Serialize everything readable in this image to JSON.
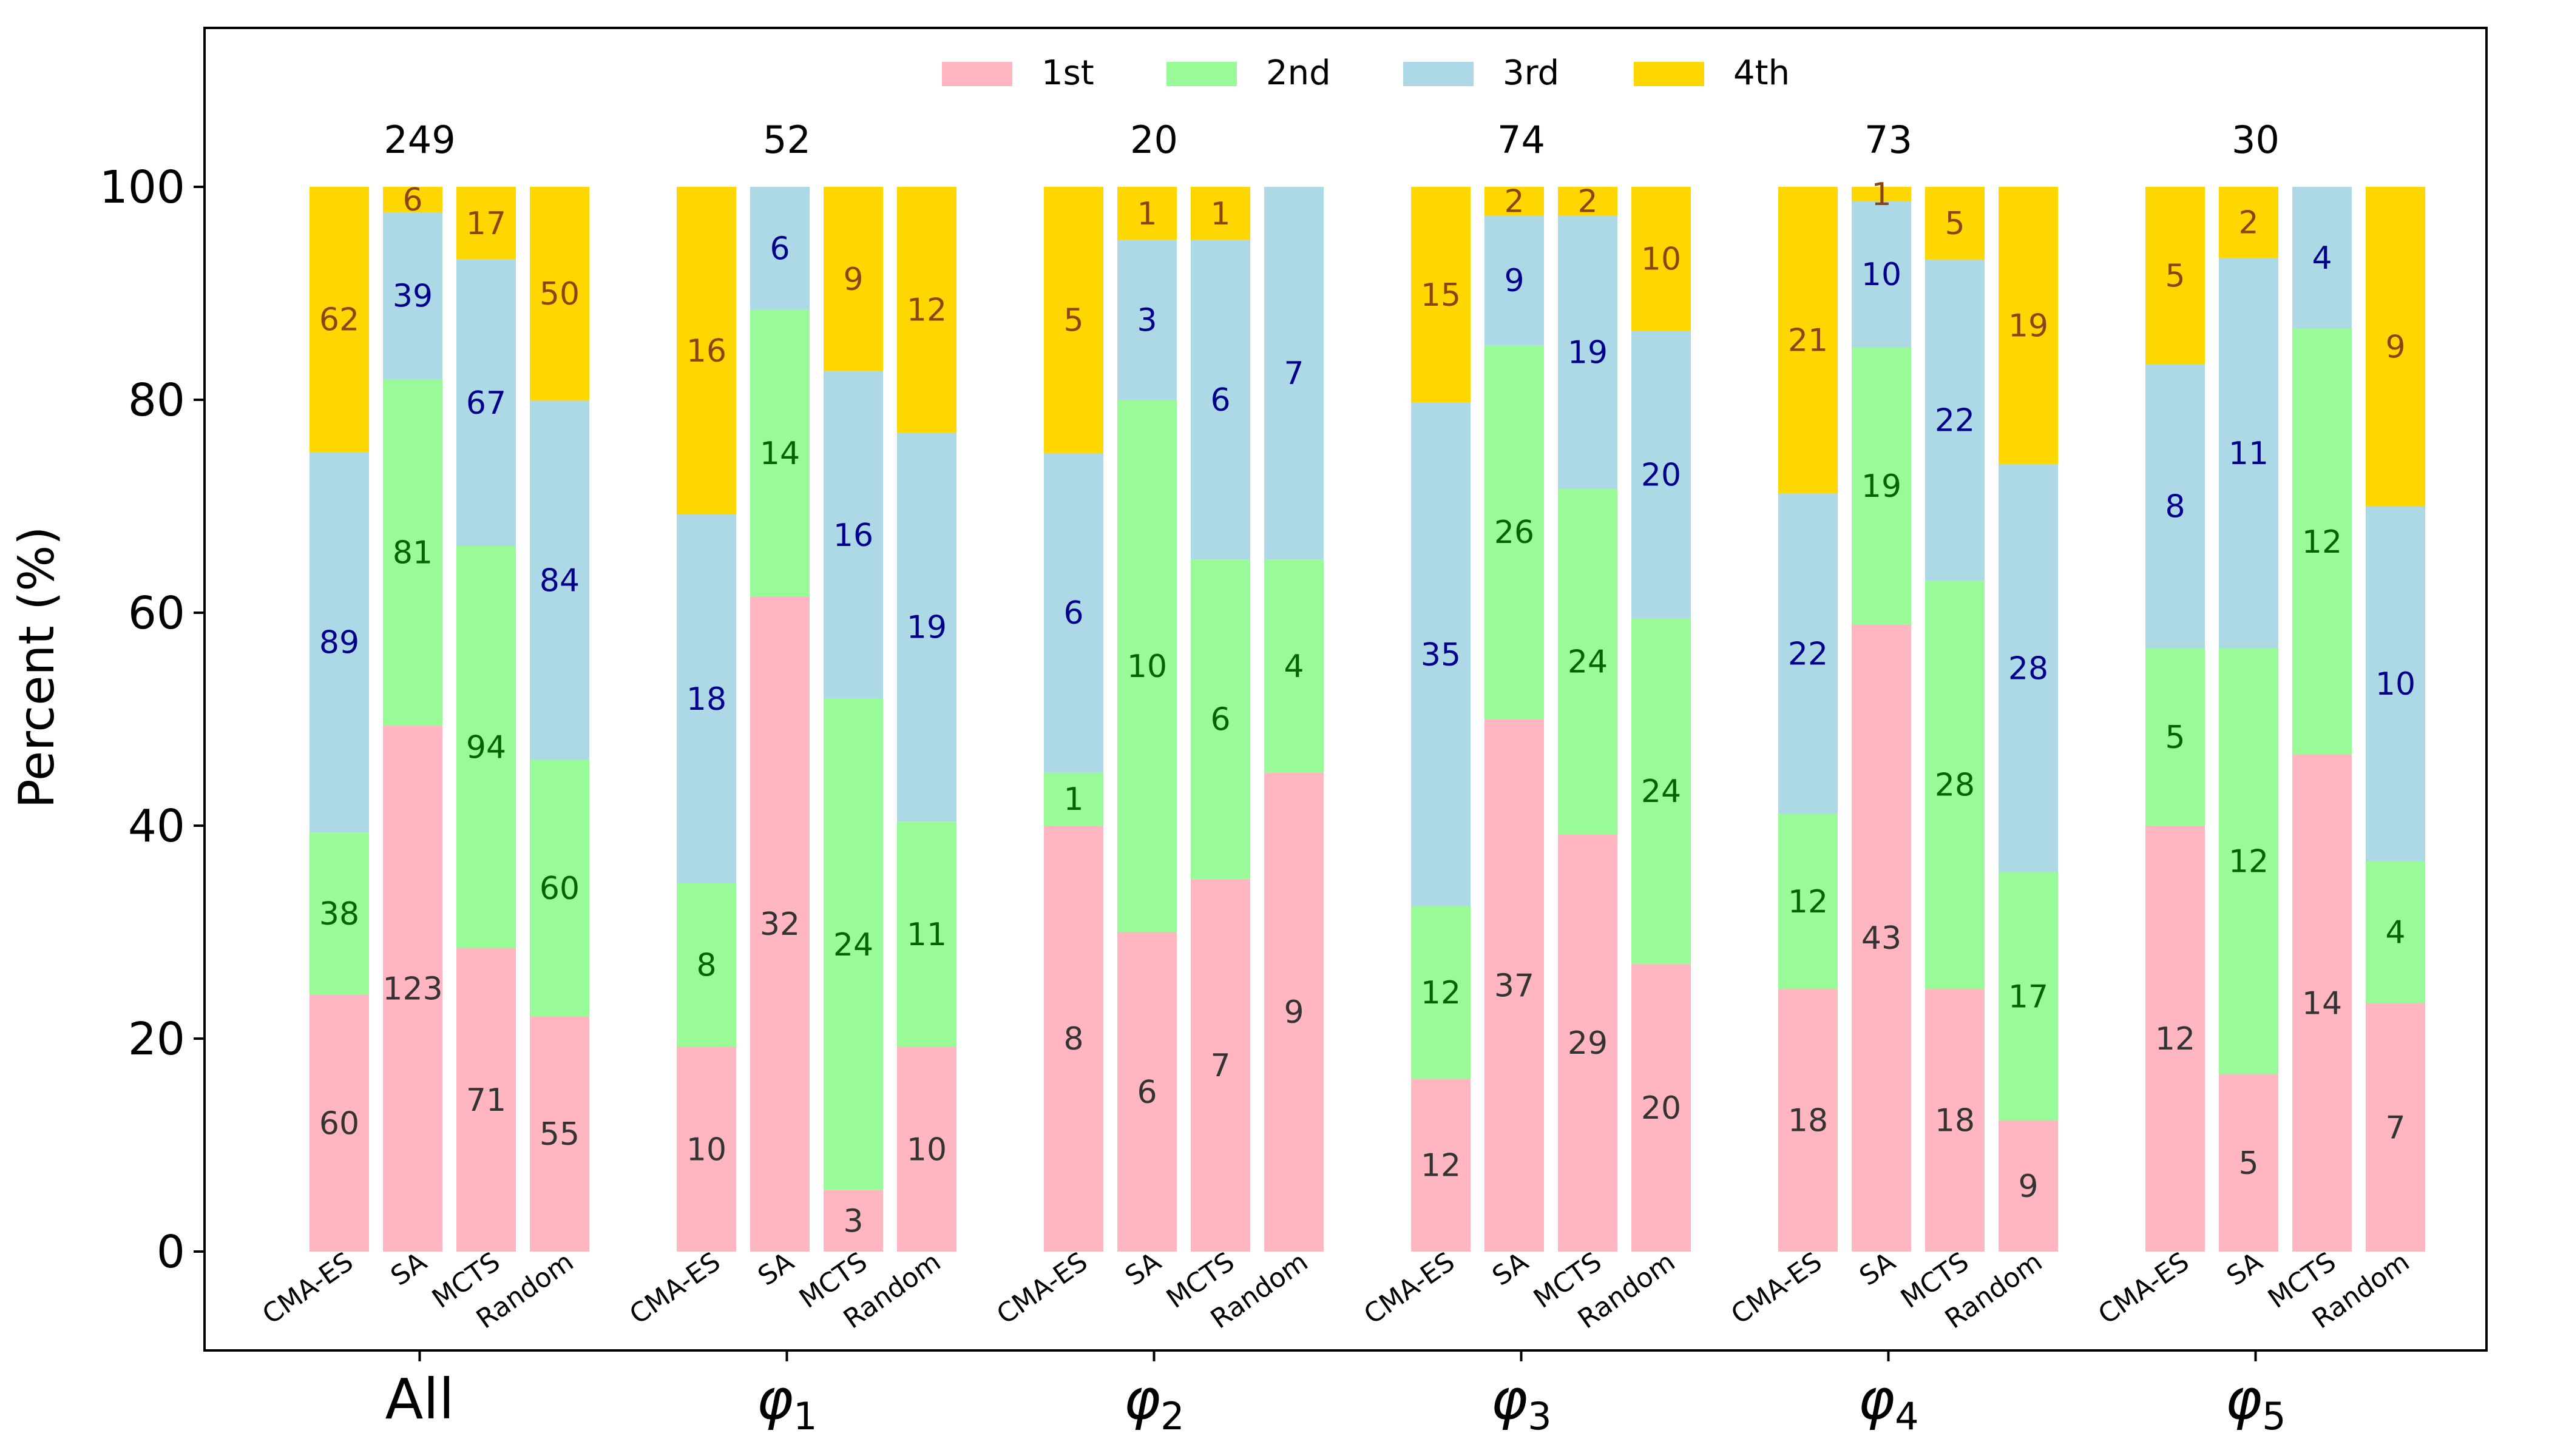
{
  "chart_data": {
    "type": "bar",
    "stacked": true,
    "ylabel": "Percent (%)",
    "ylim": [
      -10,
      115
    ],
    "yticks": [
      0,
      20,
      40,
      60,
      80,
      100
    ],
    "legend": {
      "placement": "top-center",
      "entries": [
        "1st",
        "2nd",
        "3rd",
        "4th"
      ]
    },
    "series_colors": [
      "#ffb6c1",
      "#98fb98",
      "#add8e6",
      "#ffd700"
    ],
    "label_colors": [
      "#333333",
      "#006400",
      "#00008b",
      "#8b4513"
    ],
    "methods": [
      "CMA-ES",
      "SA",
      "MCTS",
      "Random"
    ],
    "groups": [
      {
        "label": "All",
        "total": "249",
        "counts": [
          [
            60,
            38,
            89,
            62
          ],
          [
            123,
            81,
            39,
            6
          ],
          [
            71,
            94,
            67,
            17
          ],
          [
            55,
            60,
            84,
            50
          ]
        ]
      },
      {
        "label": "φ",
        "sub": "1",
        "total": "52",
        "counts": [
          [
            10,
            8,
            18,
            16
          ],
          [
            32,
            14,
            6,
            0
          ],
          [
            3,
            24,
            16,
            9
          ],
          [
            10,
            11,
            19,
            12
          ]
        ]
      },
      {
        "label": "φ",
        "sub": "2",
        "total": "20",
        "counts": [
          [
            8,
            1,
            6,
            5
          ],
          [
            6,
            10,
            3,
            1
          ],
          [
            7,
            6,
            6,
            1
          ],
          [
            9,
            4,
            7,
            0
          ]
        ]
      },
      {
        "label": "φ",
        "sub": "3",
        "total": "74",
        "counts": [
          [
            12,
            12,
            35,
            15
          ],
          [
            37,
            26,
            9,
            2
          ],
          [
            29,
            24,
            19,
            2
          ],
          [
            20,
            24,
            20,
            10
          ]
        ]
      },
      {
        "label": "φ",
        "sub": "4",
        "total": "73",
        "counts": [
          [
            18,
            12,
            22,
            21
          ],
          [
            43,
            19,
            10,
            1
          ],
          [
            18,
            28,
            22,
            5
          ],
          [
            9,
            17,
            28,
            19
          ]
        ]
      },
      {
        "label": "φ",
        "sub": "5",
        "total": "30",
        "counts": [
          [
            12,
            5,
            8,
            5
          ],
          [
            5,
            12,
            11,
            2
          ],
          [
            14,
            12,
            4,
            0
          ],
          [
            7,
            4,
            10,
            9
          ]
        ]
      }
    ]
  }
}
